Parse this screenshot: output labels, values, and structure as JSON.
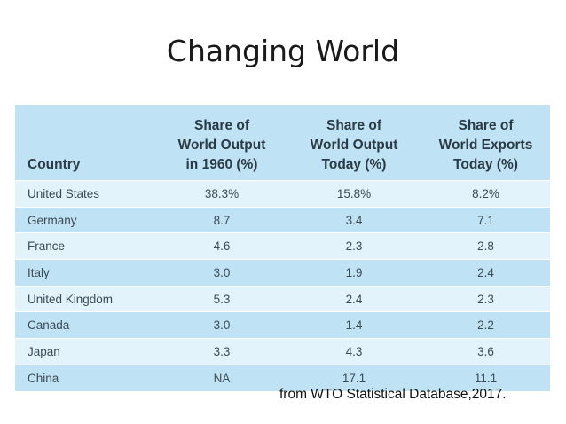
{
  "title": "Changing World",
  "table": {
    "headers": [
      [
        "Country"
      ],
      [
        "Share of",
        "World Output",
        "in 1960 (%)"
      ],
      [
        "Share of",
        "World Output",
        "Today (%)"
      ],
      [
        "Share of",
        "World Exports",
        "Today (%)"
      ]
    ],
    "rows": [
      [
        "United States",
        "38.3%",
        "15.8%",
        "8.2%"
      ],
      [
        "Germany",
        "8.7",
        "3.4",
        "7.1"
      ],
      [
        "France",
        "4.6",
        "2.3",
        "2.8"
      ],
      [
        "Italy",
        "3.0",
        "1.9",
        "2.4"
      ],
      [
        "United Kingdom",
        "5.3",
        "2.4",
        "2.3"
      ],
      [
        "Canada",
        "3.0",
        "1.4",
        "2.2"
      ],
      [
        "Japan",
        "3.3",
        "4.3",
        "3.6"
      ],
      [
        "China",
        "NA",
        "17.1",
        "11.1"
      ]
    ]
  },
  "source_note": "from WTO Statistical Database,2017.",
  "colors": {
    "header_bg": "#bfe3f5",
    "row_light": "#e3f3fb",
    "row_dark": "#bfe3f5",
    "header_text": "#2b3a44",
    "cell_text": "#3c4a52"
  }
}
